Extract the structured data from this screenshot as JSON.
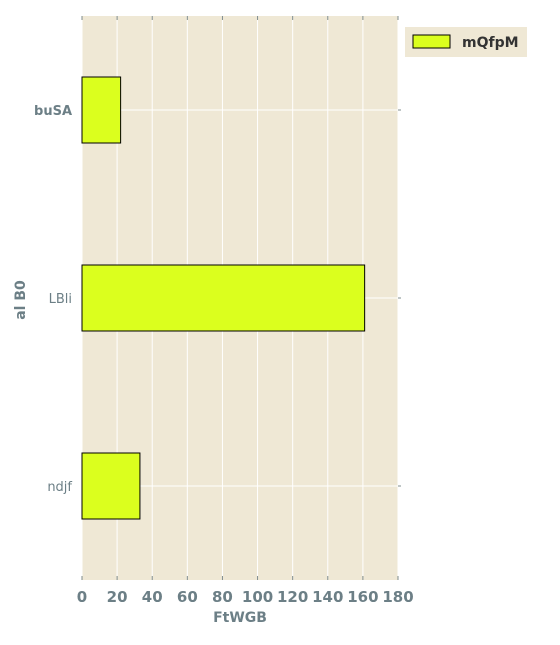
{
  "chart_data": {
    "type": "bar",
    "orientation": "horizontal",
    "title": "",
    "xlabel": "FtWGB",
    "ylabel": "al B0",
    "categories": [
      "buSA",
      "LBli",
      "ndjf"
    ],
    "series": [
      {
        "name": "mQfpM",
        "values": [
          22,
          161,
          33
        ],
        "color": "#dbff1e"
      }
    ],
    "xlim": [
      0,
      180
    ],
    "xticks": [
      0,
      20,
      40,
      60,
      80,
      100,
      120,
      140,
      160,
      180
    ],
    "xtick_labels": [
      "0",
      "20",
      "40",
      "60",
      "80",
      "100",
      "120",
      "140",
      "160",
      "180"
    ],
    "ytick_labels": [
      "buSA",
      "LBli",
      "ndjf"
    ],
    "ytick_bold": [
      true,
      false,
      false
    ],
    "grid": true,
    "legend_position": "outside-top-right",
    "colors": {
      "plot_background": "#efe8d5",
      "grid": "#ffffff",
      "bar_edge": "#000000",
      "text": "#6c7f86"
    }
  }
}
